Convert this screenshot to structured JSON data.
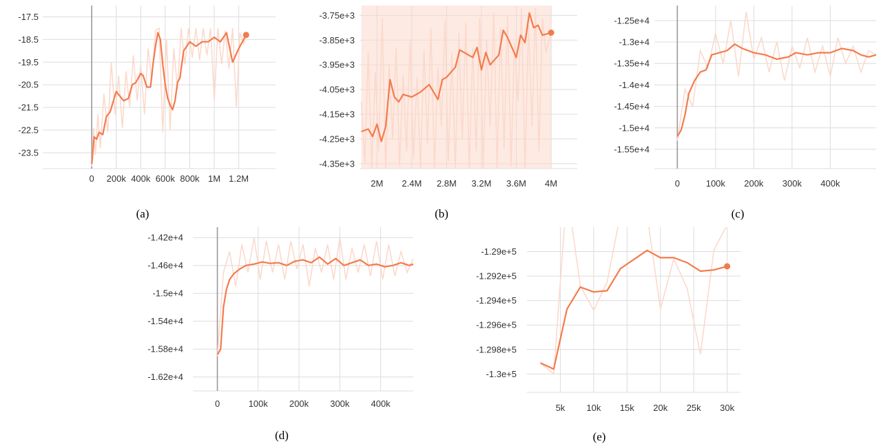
{
  "colors": {
    "series": "#f47a4c",
    "raw": "#fcd9cc",
    "grid": "#dcdcdc",
    "axis": "#999999"
  },
  "chart_data": [
    {
      "type": "line",
      "caption": "(a)",
      "xlim": [
        -400000,
        1500000
      ],
      "ylim": [
        -24.2,
        -17.0
      ],
      "x_ticks": [
        0,
        200000,
        400000,
        600000,
        800000,
        1000000,
        1200000
      ],
      "x_tick_labels": [
        "0",
        "200k",
        "400k",
        "600k",
        "800k",
        "1M",
        "1.2M"
      ],
      "y_ticks": [
        -17.5,
        -18.5,
        -19.5,
        -20.5,
        -21.5,
        -22.5,
        -23.5
      ],
      "y_tick_labels": [
        "-17.5",
        "-18.5",
        "-19.5",
        "-20.5",
        "-21.5",
        "-22.5",
        "-23.5"
      ],
      "zero_line_x": 0,
      "end_marker": true,
      "series": [
        {
          "x": [
            0,
            20000,
            40000,
            60000,
            90000,
            120000,
            150000,
            200000,
            230000,
            260000,
            300000,
            330000,
            360000,
            400000,
            420000,
            450000,
            480000,
            500000,
            520000,
            540000,
            560000,
            580000,
            600000,
            620000,
            640000,
            660000,
            680000,
            700000,
            720000,
            750000,
            800000,
            850000,
            900000,
            950000,
            1000000,
            1050000,
            1100000,
            1150000,
            1200000,
            1260000
          ],
          "y": [
            -24.0,
            -22.8,
            -22.9,
            -22.6,
            -22.7,
            -21.9,
            -21.7,
            -20.8,
            -21.0,
            -21.2,
            -21.1,
            -20.5,
            -20.4,
            -20.0,
            -20.1,
            -20.6,
            -20.6,
            -19.6,
            -18.8,
            -18.2,
            -18.5,
            -19.6,
            -20.5,
            -21.1,
            -21.4,
            -21.6,
            -21.2,
            -20.4,
            -20.2,
            -19.0,
            -18.6,
            -18.8,
            -18.6,
            -18.6,
            -18.4,
            -18.6,
            -18.2,
            -19.5,
            -18.9,
            -18.3
          ]
        }
      ],
      "raw": {
        "x": [
          0,
          15000,
          30000,
          50000,
          70000,
          100000,
          130000,
          160000,
          190000,
          220000,
          250000,
          280000,
          310000,
          340000,
          370000,
          400000,
          430000,
          460000,
          490000,
          520000,
          550000,
          580000,
          610000,
          640000,
          670000,
          700000,
          730000,
          760000,
          790000,
          820000,
          850000,
          880000,
          910000,
          940000,
          970000,
          1000000,
          1030000,
          1060000,
          1090000,
          1120000,
          1150000,
          1180000,
          1210000,
          1240000,
          1260000
        ],
        "y": [
          -24.1,
          -22.4,
          -23.6,
          -21.8,
          -23.3,
          -20.9,
          -22.6,
          -19.5,
          -21.8,
          -20.1,
          -22.4,
          -19.9,
          -21.5,
          -19.2,
          -21.2,
          -19.6,
          -21.8,
          -18.9,
          -20.3,
          -18.1,
          -18.0,
          -22.6,
          -18.5,
          -22.5,
          -18.9,
          -20.7,
          -18.0,
          -19.6,
          -18.0,
          -19.3,
          -18.0,
          -19.4,
          -18.0,
          -19.2,
          -18.0,
          -21.2,
          -18.0,
          -19.6,
          -18.1,
          -19.8,
          -18.0,
          -21.5,
          -18.2,
          -18.7,
          -18.3
        ]
      }
    },
    {
      "type": "line",
      "caption": "(b)",
      "xlim": [
        1800000,
        4300000
      ],
      "ylim": [
        -4370,
        -3710
      ],
      "x_ticks": [
        2000000,
        2400000,
        2800000,
        3200000,
        3600000,
        4000000
      ],
      "x_tick_labels": [
        "2M",
        "2.4M",
        "2.8M",
        "3.2M",
        "3.6M",
        "4M"
      ],
      "y_ticks": [
        -3750,
        -3850,
        -3950,
        -4050,
        -4150,
        -4250,
        -4350
      ],
      "y_tick_labels": [
        "-3.75e+3",
        "-3.85e+3",
        "-3.95e+3",
        "-4.05e+3",
        "-4.15e+3",
        "-4.25e+3",
        "-4.35e+3"
      ],
      "end_marker": true,
      "series": [
        {
          "x": [
            1820000,
            1900000,
            1950000,
            2000000,
            2050000,
            2100000,
            2150000,
            2200000,
            2250000,
            2300000,
            2400000,
            2500000,
            2600000,
            2700000,
            2750000,
            2800000,
            2900000,
            2950000,
            3000000,
            3100000,
            3150000,
            3200000,
            3250000,
            3300000,
            3400000,
            3450000,
            3500000,
            3600000,
            3650000,
            3700000,
            3750000,
            3800000,
            3850000,
            3900000,
            4000000
          ],
          "y": [
            -4220,
            -4210,
            -4240,
            -4190,
            -4260,
            -4200,
            -4010,
            -4080,
            -4100,
            -4070,
            -4080,
            -4060,
            -4030,
            -4090,
            -4010,
            -4000,
            -3960,
            -3890,
            -3900,
            -3920,
            -3880,
            -3970,
            -3900,
            -3950,
            -3910,
            -3810,
            -3840,
            -3920,
            -3830,
            -3860,
            -3740,
            -3800,
            -3790,
            -3830,
            -3820
          ]
        }
      ],
      "raw": {
        "x": [
          1820000,
          1860000,
          1900000,
          1940000,
          1980000,
          2020000,
          2060000,
          2100000,
          2140000,
          2180000,
          2220000,
          2260000,
          2300000,
          2340000,
          2380000,
          2420000,
          2460000,
          2500000,
          2540000,
          2580000,
          2620000,
          2660000,
          2700000,
          2740000,
          2780000,
          2820000,
          2860000,
          2900000,
          2940000,
          2980000,
          3020000,
          3060000,
          3100000,
          3140000,
          3180000,
          3220000,
          3260000,
          3300000,
          3340000,
          3380000,
          3420000,
          3460000,
          3500000,
          3540000,
          3580000,
          3620000,
          3660000,
          3700000,
          3740000,
          3780000,
          3820000,
          3860000,
          3900000,
          3940000,
          4000000
        ],
        "y": [
          -4100,
          -4350,
          -3900,
          -4370,
          -3980,
          -4300,
          -3760,
          -4370,
          -3950,
          -4250,
          -3880,
          -4360,
          -3990,
          -4300,
          -3850,
          -4330,
          -4000,
          -4370,
          -3890,
          -4270,
          -3800,
          -4370,
          -3960,
          -4200,
          -3770,
          -4340,
          -3900,
          -4370,
          -3820,
          -4250,
          -3780,
          -4370,
          -3880,
          -4300,
          -3760,
          -4370,
          -3850,
          -4200,
          -3740,
          -4370,
          -3800,
          -4290,
          -3750,
          -4360,
          -3860,
          -4100,
          -3720,
          -4370,
          -3790,
          -4200,
          -3720,
          -4300,
          -3760,
          -3900,
          -3820
        ]
      }
    },
    {
      "type": "line",
      "caption": "(c)",
      "xlim": [
        -60000,
        520000
      ],
      "ylim": [
        -15950,
        -12150
      ],
      "x_ticks": [
        0,
        100000,
        200000,
        300000,
        400000
      ],
      "x_tick_labels": [
        "0",
        "100k",
        "200k",
        "300k",
        "400k"
      ],
      "y_ticks": [
        -12500,
        -13000,
        -13500,
        -14000,
        -14500,
        -15000,
        -15500
      ],
      "y_tick_labels": [
        "-1.25e+4",
        "-1.3e+4",
        "-1.35e+4",
        "-1.4e+4",
        "-1.45e+4",
        "-1.5e+4",
        "-1.55e+4"
      ],
      "zero_line_x": 0,
      "end_marker": false,
      "series": [
        {
          "x": [
            0,
            10000,
            20000,
            30000,
            45000,
            60000,
            75000,
            90000,
            110000,
            130000,
            150000,
            170000,
            200000,
            230000,
            260000,
            290000,
            310000,
            340000,
            370000,
            400000,
            430000,
            460000,
            480000,
            500000,
            520000
          ],
          "y": [
            -15200,
            -15050,
            -14700,
            -14200,
            -13900,
            -13700,
            -13650,
            -13300,
            -13250,
            -13200,
            -13050,
            -13150,
            -13250,
            -13300,
            -13400,
            -13350,
            -13250,
            -13300,
            -13250,
            -13250,
            -13150,
            -13200,
            -13300,
            -13350,
            -13300
          ]
        }
      ],
      "raw": {
        "x": [
          0,
          20000,
          40000,
          60000,
          80000,
          100000,
          120000,
          140000,
          160000,
          180000,
          200000,
          220000,
          240000,
          260000,
          280000,
          300000,
          320000,
          340000,
          360000,
          380000,
          400000,
          420000,
          440000,
          460000,
          480000,
          500000,
          520000
        ],
        "y": [
          -15300,
          -14100,
          -14500,
          -13200,
          -13600,
          -12800,
          -13500,
          -12500,
          -13800,
          -12300,
          -13400,
          -12900,
          -13700,
          -13000,
          -13900,
          -13100,
          -13600,
          -12900,
          -13700,
          -13100,
          -13800,
          -12900,
          -13500,
          -13100,
          -13700,
          -13200,
          -13300
        ]
      }
    },
    {
      "type": "line",
      "caption": "(d)",
      "xlim": [
        -60000,
        480000
      ],
      "ylim": [
        -16400,
        -14050
      ],
      "x_ticks": [
        0,
        100000,
        200000,
        300000,
        400000
      ],
      "x_tick_labels": [
        "0",
        "100k",
        "200k",
        "300k",
        "400k"
      ],
      "y_ticks": [
        -14200,
        -14600,
        -15000,
        -15400,
        -15800,
        -16200
      ],
      "y_tick_labels": [
        "-1.42e+4",
        "-1.46e+4",
        "-1.5e+4",
        "-1.54e+4",
        "-1.58e+4",
        "-1.62e+4"
      ],
      "zero_line_x": 0,
      "end_marker": false,
      "series": [
        {
          "x": [
            0,
            8000,
            15000,
            22000,
            30000,
            40000,
            55000,
            70000,
            90000,
            110000,
            130000,
            150000,
            170000,
            190000,
            210000,
            230000,
            250000,
            270000,
            290000,
            310000,
            330000,
            350000,
            370000,
            390000,
            410000,
            430000,
            450000,
            470000,
            480000
          ],
          "y": [
            -15880,
            -15800,
            -15200,
            -14950,
            -14800,
            -14720,
            -14650,
            -14600,
            -14580,
            -14550,
            -14570,
            -14560,
            -14600,
            -14540,
            -14520,
            -14560,
            -14480,
            -14580,
            -14500,
            -14600,
            -14560,
            -14520,
            -14600,
            -14580,
            -14620,
            -14600,
            -14560,
            -14600,
            -14580
          ]
        }
      ],
      "raw": {
        "x": [
          0,
          15000,
          30000,
          45000,
          60000,
          75000,
          90000,
          105000,
          120000,
          135000,
          150000,
          165000,
          180000,
          195000,
          210000,
          225000,
          240000,
          255000,
          270000,
          285000,
          300000,
          315000,
          330000,
          345000,
          360000,
          375000,
          390000,
          405000,
          420000,
          435000,
          450000,
          465000,
          480000
        ],
        "y": [
          -15900,
          -14700,
          -14400,
          -14900,
          -14300,
          -14700,
          -14200,
          -14800,
          -14250,
          -14700,
          -14300,
          -14800,
          -14250,
          -14650,
          -14300,
          -14900,
          -14350,
          -14700,
          -14300,
          -14800,
          -14200,
          -14800,
          -14350,
          -14700,
          -14300,
          -14750,
          -14250,
          -14800,
          -14300,
          -14750,
          -14400,
          -14700,
          -14500
        ]
      }
    },
    {
      "type": "line",
      "caption": "(e)",
      "xlim": [
        0,
        32000
      ],
      "ylim": [
        -130150,
        -128800
      ],
      "x_ticks": [
        5000,
        10000,
        15000,
        20000,
        25000,
        30000
      ],
      "x_tick_labels": [
        "5k",
        "10k",
        "15k",
        "20k",
        "25k",
        "30k"
      ],
      "y_ticks": [
        -129000,
        -129200,
        -129400,
        -129600,
        -129800,
        -130000
      ],
      "y_tick_labels": [
        "-1.29e+5",
        "-1.292e+5",
        "-1.294e+5",
        "-1.296e+5",
        "-1.298e+5",
        "-1.3e+5"
      ],
      "end_marker": true,
      "series": [
        {
          "x": [
            2000,
            4000,
            6000,
            8000,
            10000,
            12000,
            14000,
            18000,
            20000,
            22000,
            24000,
            26000,
            28000,
            30000
          ],
          "y": [
            -129910,
            -129960,
            -129470,
            -129290,
            -129330,
            -129320,
            -129140,
            -128990,
            -129050,
            -129050,
            -129090,
            -129160,
            -129150,
            -129120
          ]
        }
      ],
      "raw": {
        "x": [
          2000,
          4000,
          6000,
          8000,
          10000,
          12000,
          14000,
          18000,
          20000,
          22000,
          24000,
          26000,
          28000,
          30000
        ],
        "y": [
          -129910,
          -130000,
          -128500,
          -129280,
          -129480,
          -129250,
          -128700,
          -128700,
          -129470,
          -129060,
          -129300,
          -129840,
          -128990,
          -128780
        ]
      }
    }
  ]
}
